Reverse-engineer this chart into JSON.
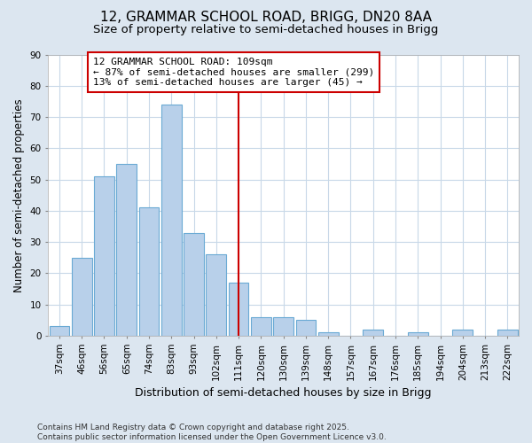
{
  "title1": "12, GRAMMAR SCHOOL ROAD, BRIGG, DN20 8AA",
  "title2": "Size of property relative to semi-detached houses in Brigg",
  "xlabel": "Distribution of semi-detached houses by size in Brigg",
  "ylabel": "Number of semi-detached properties",
  "categories": [
    "37sqm",
    "46sqm",
    "56sqm",
    "65sqm",
    "74sqm",
    "83sqm",
    "93sqm",
    "102sqm",
    "111sqm",
    "120sqm",
    "130sqm",
    "139sqm",
    "148sqm",
    "157sqm",
    "167sqm",
    "176sqm",
    "185sqm",
    "194sqm",
    "204sqm",
    "213sqm",
    "222sqm"
  ],
  "values": [
    3,
    25,
    51,
    55,
    41,
    74,
    33,
    26,
    17,
    6,
    6,
    5,
    1,
    0,
    2,
    0,
    1,
    0,
    2,
    0,
    2
  ],
  "bar_color": "#b8d0ea",
  "bar_edge_color": "#6aaad4",
  "vline_x": 8,
  "vline_color": "#cc0000",
  "annotation_text": "12 GRAMMAR SCHOOL ROAD: 109sqm\n← 87% of semi-detached houses are smaller (299)\n13% of semi-detached houses are larger (45) →",
  "annotation_box_color": "#ffffff",
  "annotation_box_edge": "#cc0000",
  "ylim": [
    0,
    90
  ],
  "yticks": [
    0,
    10,
    20,
    30,
    40,
    50,
    60,
    70,
    80,
    90
  ],
  "plot_bg_color": "#ffffff",
  "figure_bg_color": "#dce6f0",
  "grid_color": "#c8d8e8",
  "footer": "Contains HM Land Registry data © Crown copyright and database right 2025.\nContains public sector information licensed under the Open Government Licence v3.0.",
  "title1_fontsize": 11,
  "title2_fontsize": 9.5,
  "xlabel_fontsize": 9,
  "ylabel_fontsize": 8.5,
  "tick_fontsize": 7.5,
  "annotation_fontsize": 8,
  "footer_fontsize": 6.5
}
